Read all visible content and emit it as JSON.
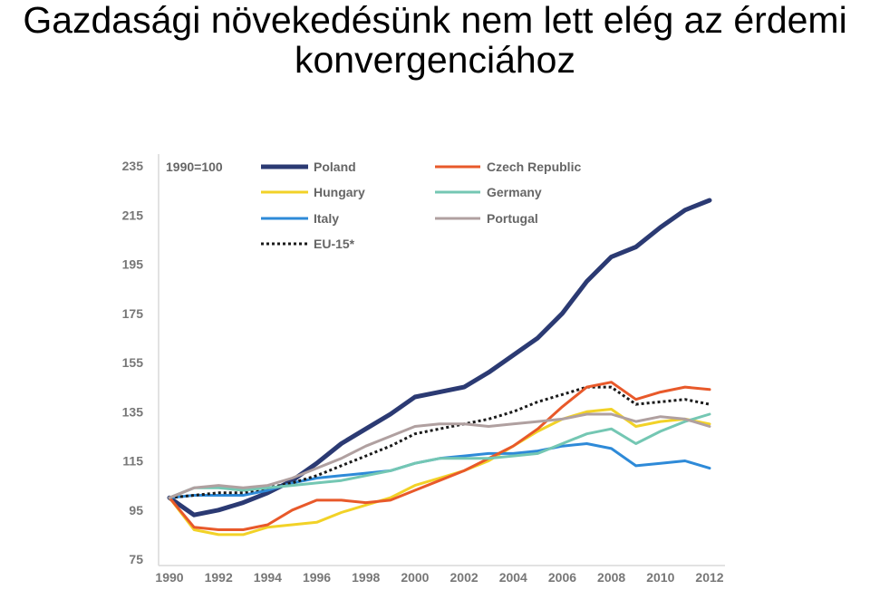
{
  "slide": {
    "title_line1": "Gazdasági növekedésünk nem lett elég az érdemi",
    "title_line2": "konvergenciához"
  },
  "chart_data": {
    "type": "line",
    "annotation": "1990=100",
    "x": [
      1990,
      1991,
      1992,
      1993,
      1994,
      1995,
      1996,
      1997,
      1998,
      1999,
      2000,
      2001,
      2002,
      2003,
      2004,
      2005,
      2006,
      2007,
      2008,
      2009,
      2010,
      2011,
      2012
    ],
    "x_ticks": [
      1990,
      1992,
      1994,
      1996,
      1998,
      2000,
      2002,
      2004,
      2006,
      2008,
      2010,
      2012
    ],
    "y_ticks": [
      75,
      95,
      115,
      135,
      155,
      175,
      195,
      215,
      235
    ],
    "ylim": [
      75,
      235
    ],
    "grid": false,
    "legend_position": "top-left",
    "series": [
      {
        "name": "Poland",
        "color": "#2b3a73",
        "width": 5,
        "dash": "",
        "values": [
          100,
          93,
          95,
          98,
          102,
          107,
          114,
          122,
          128,
          134,
          141,
          143,
          145,
          151,
          158,
          165,
          175,
          188,
          198,
          202,
          210,
          217,
          221
        ]
      },
      {
        "name": "Hungary",
        "color": "#f2d227",
        "width": 3,
        "dash": "",
        "values": [
          100,
          87,
          85,
          85,
          88,
          89,
          90,
          94,
          97,
          100,
          105,
          108,
          111,
          115,
          121,
          127,
          132,
          135,
          136,
          129,
          131,
          132,
          130
        ]
      },
      {
        "name": "Italy",
        "color": "#2e8ad8",
        "width": 3,
        "dash": "",
        "values": [
          100,
          101,
          101,
          101,
          103,
          106,
          108,
          109,
          110,
          111,
          114,
          116,
          117,
          118,
          118,
          119,
          121,
          122,
          120,
          113,
          114,
          115,
          112
        ]
      },
      {
        "name": "EU-15*",
        "color": "#1a1a1a",
        "width": 3,
        "dash": "3,3",
        "values": [
          100,
          101,
          102,
          102,
          104,
          106,
          109,
          113,
          117,
          121,
          126,
          128,
          130,
          132,
          135,
          139,
          142,
          145,
          145,
          138,
          139,
          140,
          138
        ]
      },
      {
        "name": "Czech Republic",
        "color": "#e8592a",
        "width": 3,
        "dash": "",
        "values": [
          100,
          88,
          87,
          87,
          89,
          95,
          99,
          99,
          98,
          99,
          103,
          107,
          111,
          116,
          121,
          128,
          137,
          145,
          147,
          140,
          143,
          145,
          144
        ]
      },
      {
        "name": "Germany",
        "color": "#74c7b3",
        "width": 3,
        "dash": "",
        "values": [
          100,
          104,
          104,
          103,
          104,
          105,
          106,
          107,
          109,
          111,
          114,
          116,
          116,
          116,
          117,
          118,
          122,
          126,
          128,
          122,
          127,
          131,
          134
        ]
      },
      {
        "name": "Portugal",
        "color": "#b0a0a0",
        "width": 3,
        "dash": "",
        "values": [
          100,
          104,
          105,
          104,
          105,
          108,
          112,
          116,
          121,
          125,
          129,
          130,
          130,
          129,
          130,
          131,
          132,
          134,
          134,
          131,
          133,
          132,
          129
        ]
      }
    ]
  }
}
